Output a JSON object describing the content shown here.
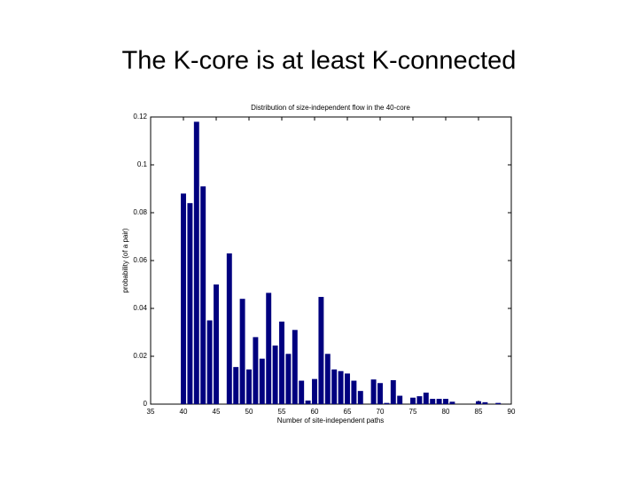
{
  "slide_title": "The K-core is at least K-connected",
  "chart_data": {
    "type": "bar",
    "title": "Distribution of size-independent flow in the 40-core",
    "xlabel": "Number of site-independent paths",
    "ylabel": "probability (of a pair)",
    "x": [
      40,
      41,
      42,
      43,
      44,
      45,
      47,
      48,
      49,
      50,
      51,
      52,
      53,
      54,
      55,
      56,
      57,
      58,
      59,
      60,
      61,
      62,
      63,
      64,
      65,
      66,
      67,
      69,
      70,
      71,
      72,
      73,
      75,
      76,
      77,
      78,
      79,
      80,
      81,
      85,
      86,
      88
    ],
    "values": [
      0.088,
      0.084,
      0.118,
      0.091,
      0.035,
      0.05,
      0.063,
      0.0155,
      0.044,
      0.0145,
      0.028,
      0.019,
      0.0465,
      0.0245,
      0.0345,
      0.021,
      0.031,
      0.0098,
      0.0015,
      0.0105,
      0.0448,
      0.021,
      0.0145,
      0.0138,
      0.0128,
      0.0098,
      0.0055,
      0.0103,
      0.0088,
      0.0005,
      0.01,
      0.0035,
      0.0027,
      0.0033,
      0.0048,
      0.0022,
      0.0022,
      0.0022,
      0.001,
      0.0012,
      0.0008,
      0.0005
    ],
    "color": "#00007f",
    "xlim": [
      35,
      90
    ],
    "xticks": [
      35,
      40,
      45,
      50,
      55,
      60,
      65,
      70,
      75,
      80,
      85,
      90
    ],
    "ylim": [
      0,
      0.12
    ],
    "yticks": [
      0,
      0.02,
      0.04,
      0.06,
      0.08,
      0.1,
      0.12
    ]
  }
}
